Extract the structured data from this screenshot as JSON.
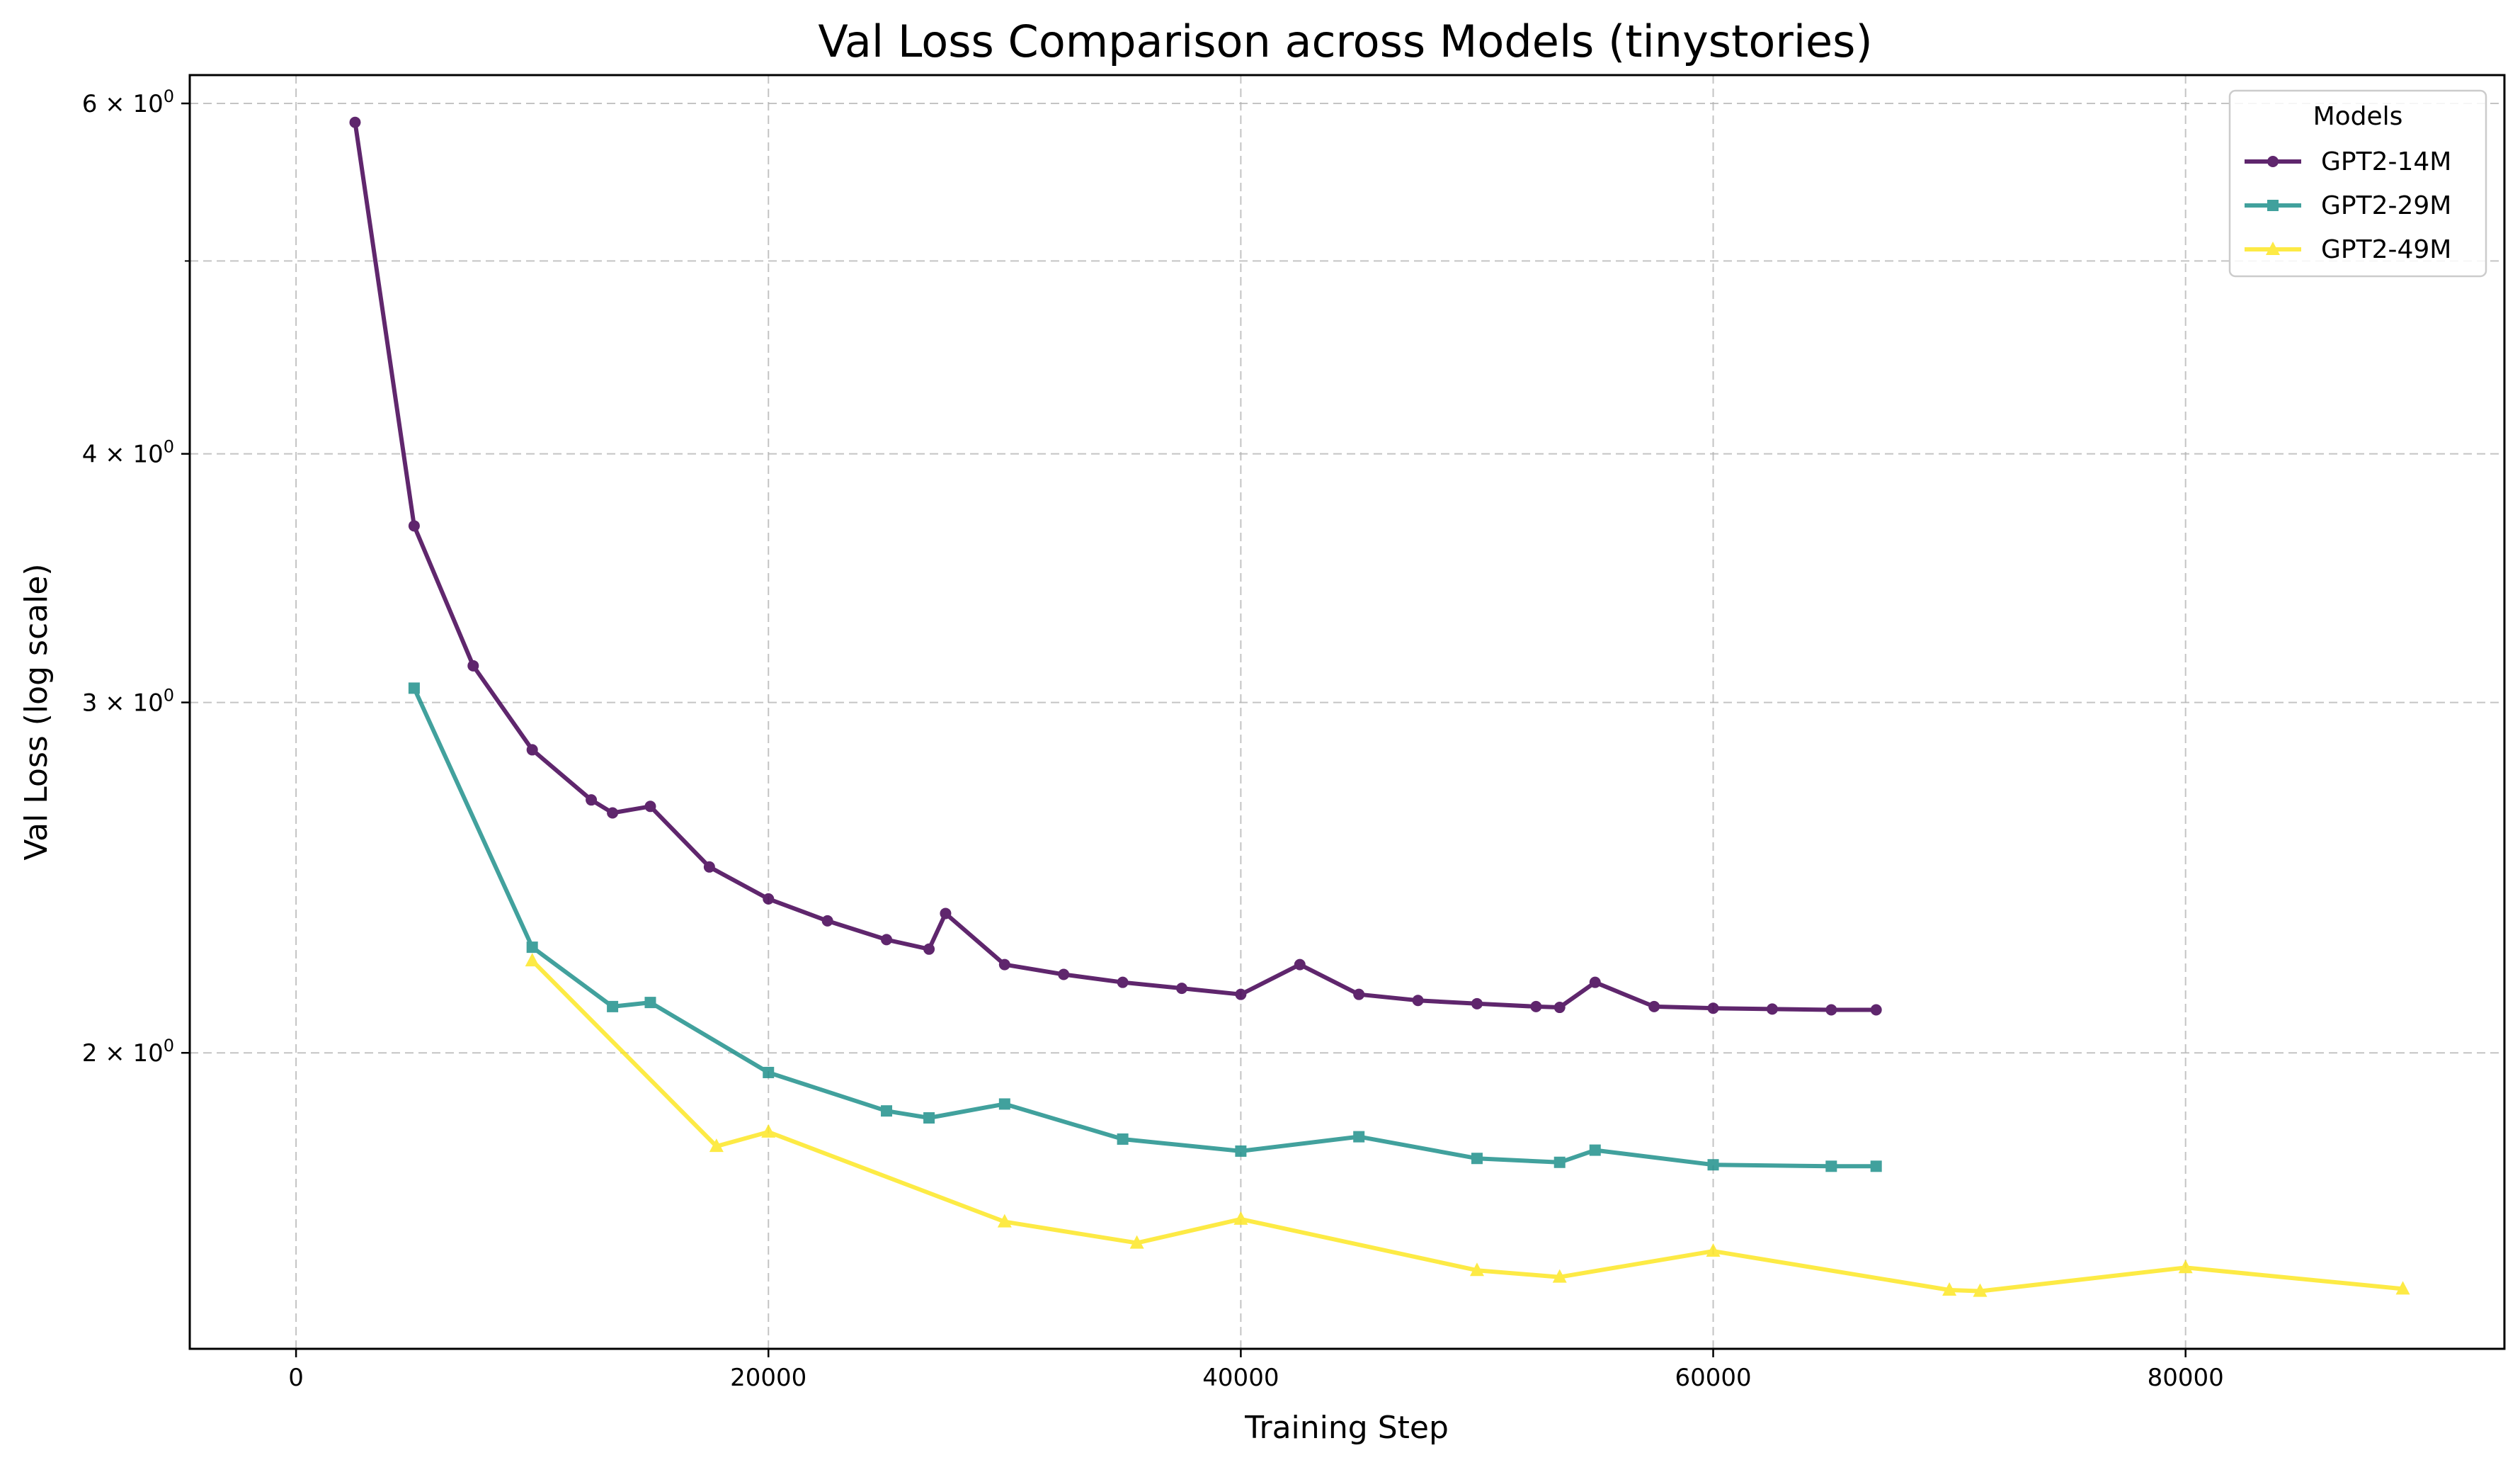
{
  "chart_data": {
    "type": "line",
    "title": "Val Loss Comparison across Models (tinystories)",
    "xlabel": "Training Step",
    "ylabel": "Val Loss (log scale)",
    "yscale": "log",
    "xlim": [
      -4500,
      93500
    ],
    "ylim": [
      1.42,
      6.2
    ],
    "x_ticks": [
      0,
      20000,
      40000,
      60000,
      80000
    ],
    "x_tick_labels": [
      "0",
      "20000",
      "40000",
      "60000",
      "80000"
    ],
    "y_major_ticks": [
      2,
      3,
      4,
      6
    ],
    "y_tick_labels": [
      {
        "base": "2",
        "exp": "0"
      },
      {
        "base": "3",
        "exp": "0"
      },
      {
        "base": "4",
        "exp": "0"
      },
      {
        "base": "6",
        "exp": "0"
      }
    ],
    "y_minor_ticks": [
      5
    ],
    "grid": true,
    "legend": {
      "title": "Models",
      "position": "top-right"
    },
    "series": [
      {
        "name": "GPT2-14M",
        "color": "#440154",
        "marker": "circle",
        "points": [
          [
            2500,
            5.87
          ],
          [
            5000,
            3.68
          ],
          [
            7500,
            3.13
          ],
          [
            10000,
            2.84
          ],
          [
            12500,
            2.68
          ],
          [
            13400,
            2.64
          ],
          [
            15000,
            2.66
          ],
          [
            17500,
            2.48
          ],
          [
            20000,
            2.39
          ],
          [
            22500,
            2.33
          ],
          [
            25000,
            2.28
          ],
          [
            26800,
            2.255
          ],
          [
            27500,
            2.35
          ],
          [
            30000,
            2.215
          ],
          [
            32500,
            2.19
          ],
          [
            35000,
            2.17
          ],
          [
            37500,
            2.155
          ],
          [
            40000,
            2.14
          ],
          [
            42500,
            2.215
          ],
          [
            45000,
            2.14
          ],
          [
            47500,
            2.125
          ],
          [
            50000,
            2.117
          ],
          [
            52500,
            2.11
          ],
          [
            53500,
            2.108
          ],
          [
            55000,
            2.17
          ],
          [
            57500,
            2.11
          ],
          [
            60000,
            2.106
          ],
          [
            62500,
            2.104
          ],
          [
            65000,
            2.102
          ],
          [
            66900,
            2.102
          ]
        ]
      },
      {
        "name": "GPT2-29M",
        "color": "#21918c",
        "marker": "square",
        "points": [
          [
            5000,
            3.05
          ],
          [
            10000,
            2.26
          ],
          [
            13400,
            2.11
          ],
          [
            15000,
            2.12
          ],
          [
            20000,
            1.955
          ],
          [
            25000,
            1.87
          ],
          [
            26800,
            1.855
          ],
          [
            30000,
            1.885
          ],
          [
            35000,
            1.81
          ],
          [
            40000,
            1.785
          ],
          [
            45000,
            1.815
          ],
          [
            50000,
            1.77
          ],
          [
            53500,
            1.762
          ],
          [
            55000,
            1.787
          ],
          [
            60000,
            1.757
          ],
          [
            65000,
            1.754
          ],
          [
            66900,
            1.754
          ]
        ]
      },
      {
        "name": "GPT2-49M",
        "color": "#fde725",
        "marker": "triangle",
        "points": [
          [
            10000,
            2.225
          ],
          [
            17800,
            1.795
          ],
          [
            20000,
            1.825
          ],
          [
            30000,
            1.645
          ],
          [
            35600,
            1.605
          ],
          [
            40000,
            1.65
          ],
          [
            50000,
            1.555
          ],
          [
            53500,
            1.543
          ],
          [
            60000,
            1.59
          ],
          [
            70000,
            1.52
          ],
          [
            71300,
            1.518
          ],
          [
            80000,
            1.56
          ],
          [
            89200,
            1.522
          ]
        ]
      }
    ]
  }
}
